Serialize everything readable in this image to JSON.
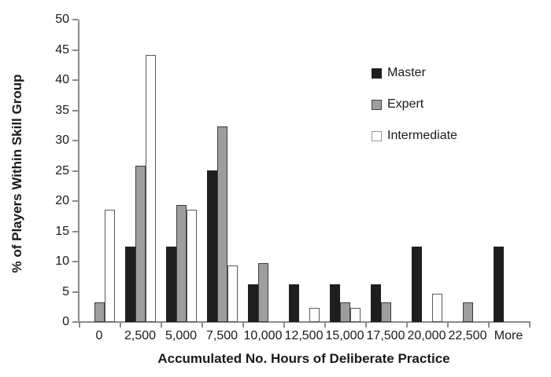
{
  "chart_data": {
    "type": "bar",
    "xlabel": "Accumulated No. Hours of Deliberate Practice",
    "ylabel": "% of Players Within Skill Group",
    "categories": [
      "0",
      "2,500",
      "5,000",
      "7,500",
      "10,000",
      "12,500",
      "15,000",
      "17,500",
      "20,000",
      "22,500",
      "More"
    ],
    "series": [
      {
        "name": "Master",
        "fill": "#1e1e1e",
        "border": "#1e1e1e",
        "values": [
          0,
          12.5,
          12.5,
          25,
          6.25,
          6.25,
          6.25,
          6.25,
          12.5,
          0,
          12.5
        ]
      },
      {
        "name": "Expert",
        "fill": "#9e9e9e",
        "border": "#3d3d3d",
        "values": [
          3.2,
          25.8,
          19.4,
          32.3,
          9.7,
          0,
          3.2,
          3.2,
          0,
          3.2,
          0
        ]
      },
      {
        "name": "Intermediate",
        "fill": "#ffffff",
        "border": "#5a5a5a",
        "values": [
          18.6,
          44.2,
          18.6,
          9.3,
          0,
          2.3,
          2.3,
          0,
          4.7,
          0,
          0
        ]
      }
    ],
    "ylim": [
      0,
      50
    ],
    "ytick_step": 5,
    "grid": false,
    "legend_position": "upper-right-inside",
    "colors": {
      "axis": "#8c8c8c",
      "text": "#1a1a1a",
      "background": "#ffffff"
    }
  }
}
